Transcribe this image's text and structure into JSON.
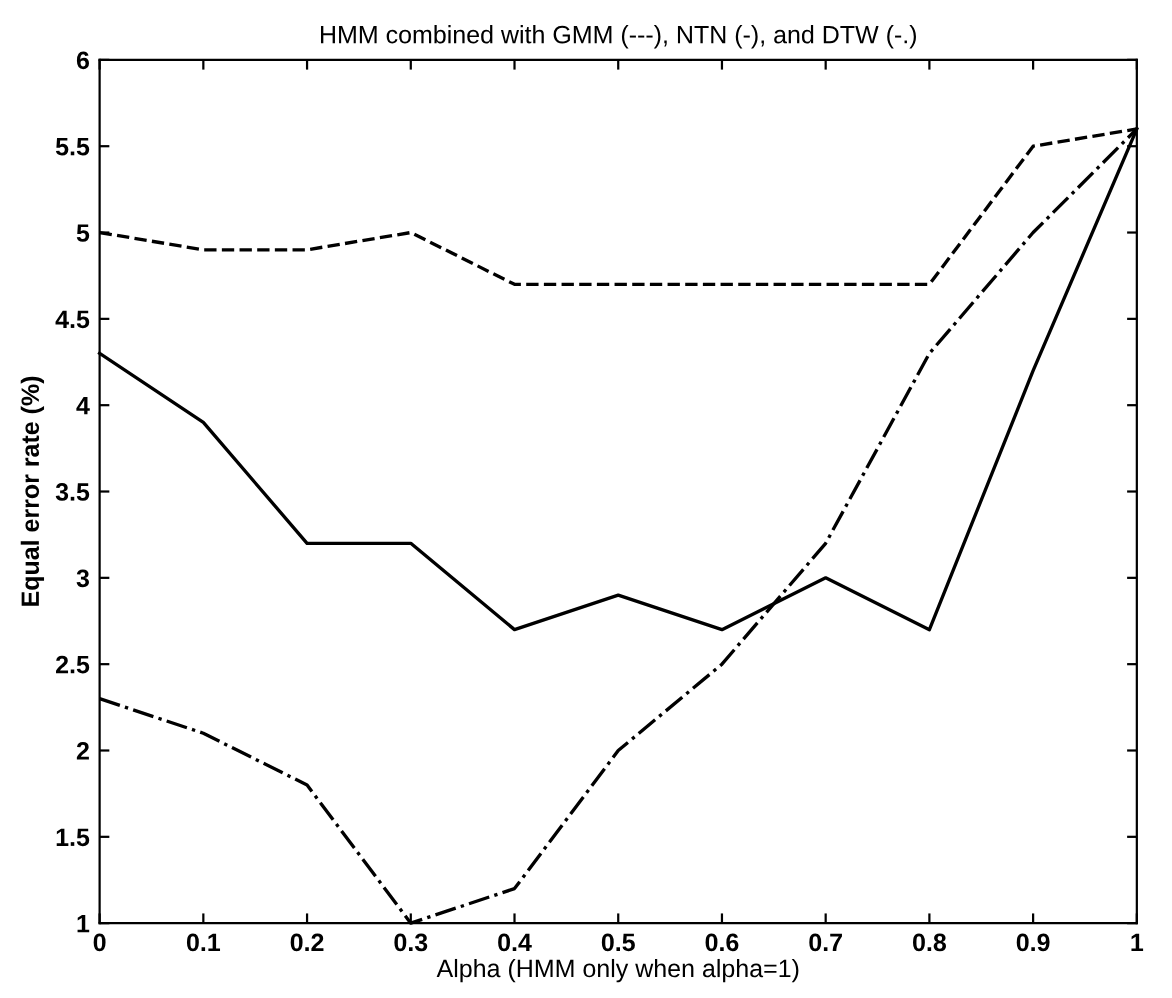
{
  "chart_data": {
    "type": "line",
    "title": "HMM combined with GMM (---), NTN (-), and DTW (-.)",
    "xlabel": "Alpha (HMM only when alpha=1)",
    "ylabel": "Equal error rate (%)",
    "x": [
      0,
      0.1,
      0.2,
      0.3,
      0.4,
      0.5,
      0.6,
      0.7,
      0.8,
      0.9,
      1
    ],
    "series": [
      {
        "color": "#000000",
        "line_style": "dashed",
        "values": [
          5.0,
          4.9,
          4.9,
          5.0,
          4.7,
          4.7,
          4.7,
          4.7,
          4.7,
          5.5,
          5.6
        ]
      },
      {
        "color": "#000000",
        "line_style": "solid",
        "values": [
          4.3,
          3.9,
          3.2,
          3.2,
          2.7,
          2.9,
          2.7,
          3.0,
          2.7,
          4.2,
          5.6
        ]
      },
      {
        "color": "#000000",
        "line_style": "dashdot",
        "values": [
          2.3,
          2.1,
          1.8,
          1.0,
          1.2,
          2.0,
          2.5,
          3.2,
          4.3,
          5.0,
          5.6
        ]
      }
    ],
    "xlim": [
      0,
      1
    ],
    "ylim": [
      1,
      6
    ],
    "xticks": [
      0,
      0.1,
      0.2,
      0.3,
      0.4,
      0.5,
      0.6,
      0.7,
      0.8,
      0.9,
      1
    ],
    "yticks": [
      1,
      1.5,
      2,
      2.5,
      3,
      3.5,
      4,
      4.5,
      5,
      5.5,
      6
    ],
    "grid": false,
    "legend": false
  }
}
